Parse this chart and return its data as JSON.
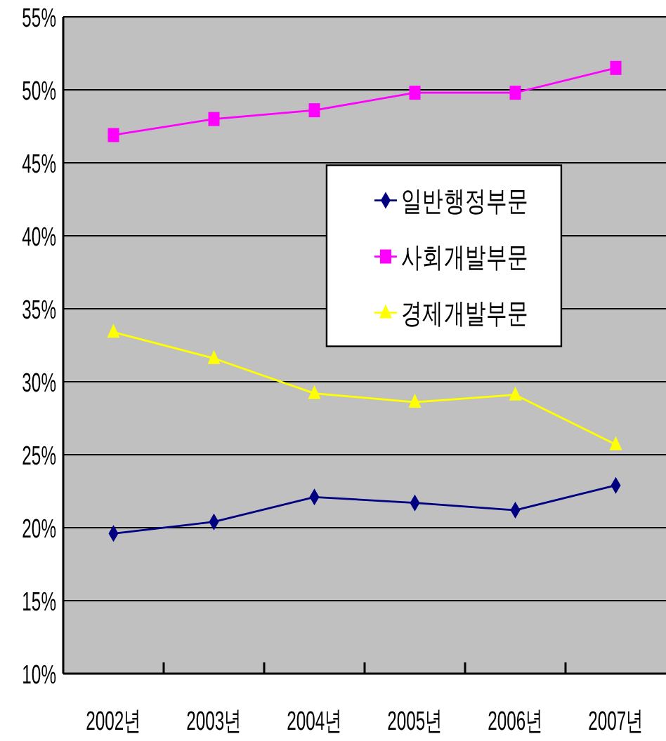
{
  "chart_data": {
    "type": "line",
    "categories": [
      "2002년",
      "2003년",
      "2004년",
      "2005년",
      "2006년",
      "2007년"
    ],
    "series": [
      {
        "name": "일반행정부문",
        "color": "#000080",
        "marker": "diamond",
        "values": [
          19.6,
          20.4,
          22.1,
          21.7,
          21.2,
          22.9
        ]
      },
      {
        "name": "사회개발부문",
        "color": "#ff00ff",
        "marker": "square",
        "values": [
          46.9,
          48.0,
          48.6,
          49.8,
          49.8,
          51.5
        ]
      },
      {
        "name": "경제개발부문",
        "color": "#ffff00",
        "marker": "triangle",
        "values": [
          33.4,
          31.6,
          29.2,
          28.6,
          29.1,
          25.7
        ]
      }
    ],
    "ylim": [
      10,
      55
    ],
    "yticks": [
      {
        "value": 10,
        "label": "10%"
      },
      {
        "value": 15,
        "label": "15%"
      },
      {
        "value": 20,
        "label": "20%"
      },
      {
        "value": 25,
        "label": "25%"
      },
      {
        "value": 30,
        "label": "30%"
      },
      {
        "value": 35,
        "label": "35%"
      },
      {
        "value": 40,
        "label": "40%"
      },
      {
        "value": 45,
        "label": "45%"
      },
      {
        "value": 50,
        "label": "50%"
      },
      {
        "value": 55,
        "label": "55%"
      }
    ],
    "grid": "y",
    "legend": "top right",
    "line_style": "solid"
  }
}
